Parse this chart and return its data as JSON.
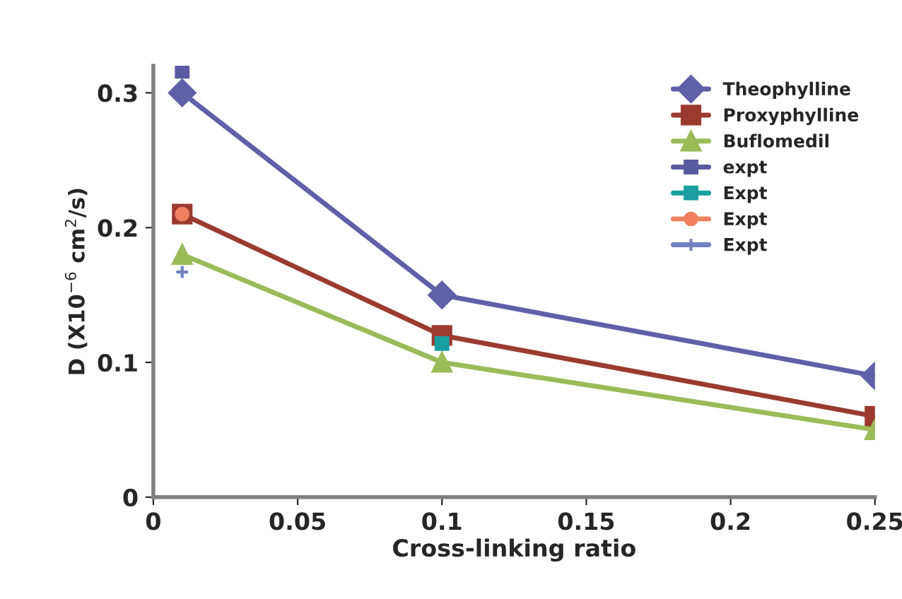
{
  "chart_data": {
    "type": "line",
    "xlabel": "Cross-linking ratio",
    "ylabel": "D (X10$^{−6}$ cm$^{2}$/s)",
    "xlim": [
      0,
      0.25
    ],
    "xticks": [
      0,
      0.05,
      0.1,
      0.15,
      0.2,
      0.25
    ],
    "ylim": [
      0,
      0.32
    ],
    "yticks": [
      0,
      0.1,
      0.2,
      0.3
    ],
    "grid": false,
    "legend": "top right",
    "series": [
      {
        "name": "Theophylline",
        "color": "#6060a8",
        "marker": "diamond",
        "x": [
          0.01,
          0.1,
          0.25
        ],
        "values": [
          0.3,
          0.15,
          0.09
        ]
      },
      {
        "name": "Proxyphylline",
        "color": "#9b3b2f",
        "marker": "square",
        "x": [
          0.01,
          0.1,
          0.25
        ],
        "values": [
          0.21,
          0.12,
          0.06
        ]
      },
      {
        "name": "Buflomedil",
        "color": "#9bbb59",
        "marker": "triangle",
        "x": [
          0.01,
          0.1,
          0.25
        ],
        "values": [
          0.18,
          0.1,
          0.05
        ]
      },
      {
        "name": "expt",
        "color": "#5a5aa0",
        "marker": "square",
        "x": [
          0.01
        ],
        "values": [
          0.316
        ]
      },
      {
        "name": "Expt",
        "color": "#1a9ea0",
        "marker": "square",
        "x": [
          0.1
        ],
        "values": [
          0.114
        ]
      },
      {
        "name": "Expt",
        "color": "#f08060",
        "marker": "circle",
        "x": [
          0.01
        ],
        "values": [
          0.21
        ]
      },
      {
        "name": "Expt",
        "color": "#7080c0",
        "marker": "cross",
        "x": [
          0.01
        ],
        "values": [
          0.167
        ]
      }
    ]
  }
}
